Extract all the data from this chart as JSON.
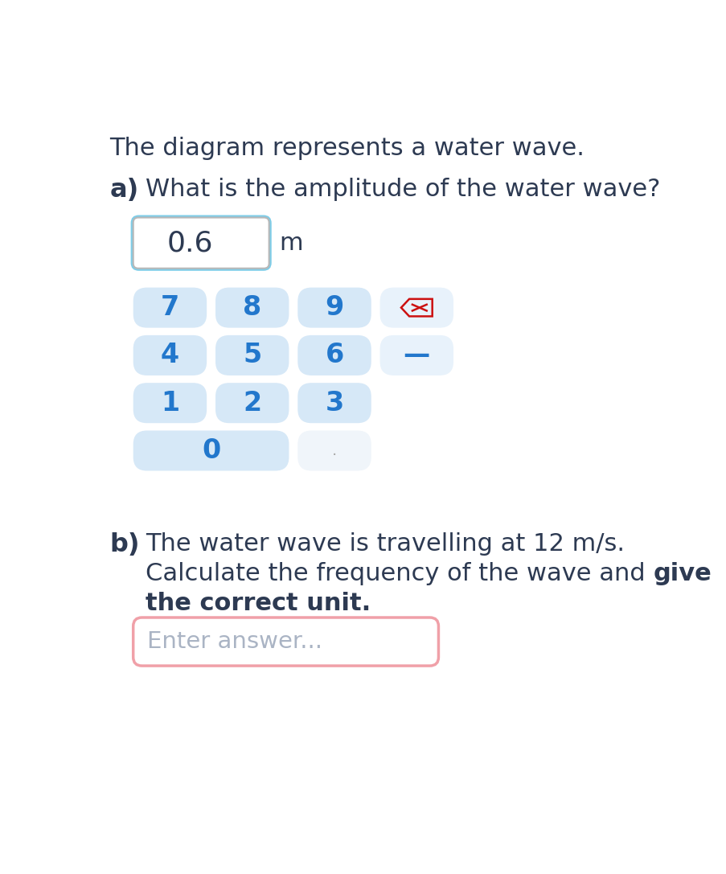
{
  "bg_color": "#ffffff",
  "title_text": "The diagram represents a water wave.",
  "text_color": "#2d3a52",
  "part_a_label": "a)",
  "part_a_question": "What is the amplitude of the water wave?",
  "part_b_label": "b)",
  "part_b_line1": "The water wave is travelling at 12 m/s.",
  "part_b_line2_normal": "Calculate the frequency of the wave and ",
  "part_b_line2_bold": "give",
  "part_b_line3_bold": "the correct unit",
  "part_b_line3_dot": ".",
  "answer_box_value": "0.6",
  "answer_box_unit": "m",
  "answer_box_border_outer": "#7ecde8",
  "answer_box_border_inner": "#b8b8b8",
  "answer_box_bg": "#ffffff",
  "keypad_btn_bg": "#d6e8f7",
  "keypad_btn_bg_light": "#e8f2fb",
  "keypad_dot_bg": "#f0f5fa",
  "keypad_text_color": "#2277cc",
  "enter_answer_text": "Enter answer...",
  "enter_answer_color": "#aab4c4",
  "enter_box_border": "#f0a0a8",
  "enter_box_bg": "#ffffff",
  "title_fontsize": 22,
  "label_fontsize": 23,
  "question_fontsize": 22,
  "keypad_fontsize": 24,
  "answer_fontsize": 26,
  "enter_fontsize": 21
}
